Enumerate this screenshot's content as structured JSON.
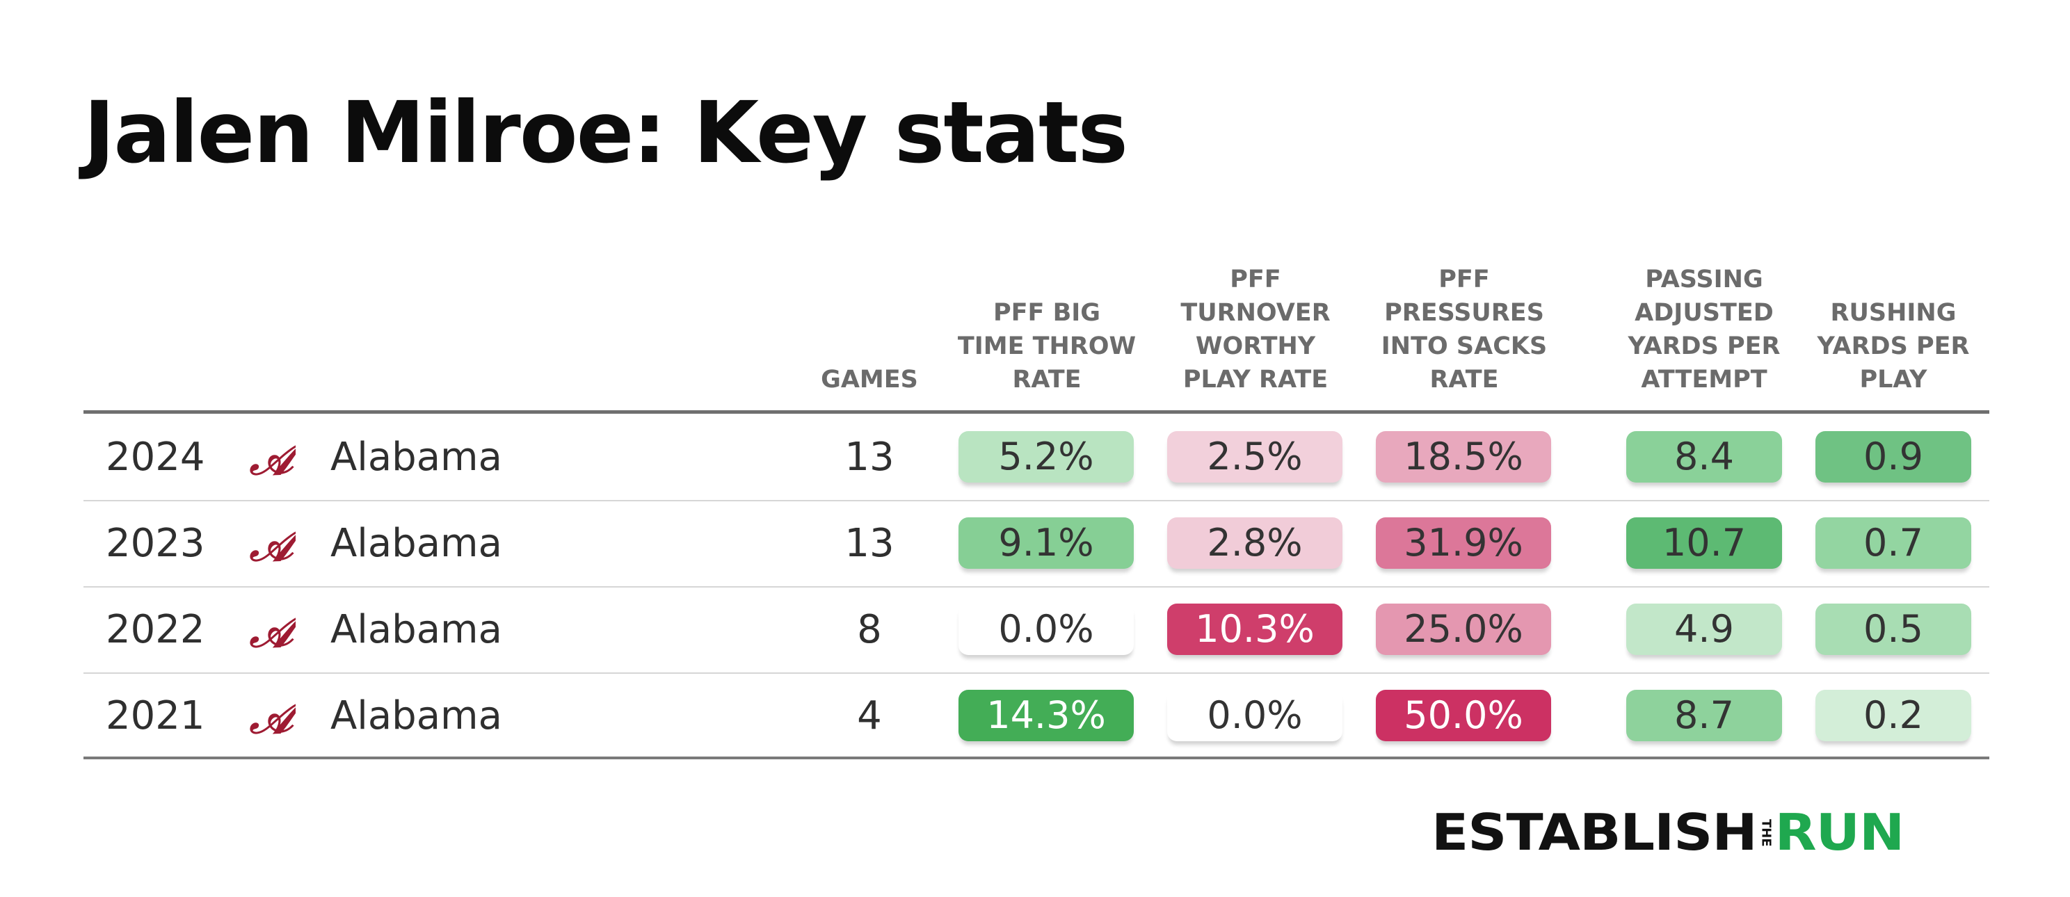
{
  "title": "Jalen Milroe: Key stats",
  "headers": {
    "games": [
      "GAMES"
    ],
    "c1": [
      "PFF BIG",
      "TIME THROW",
      "RATE"
    ],
    "c2": [
      "PFF",
      "TURNOVER",
      "WORTHY",
      "PLAY RATE"
    ],
    "c3": [
      "PFF",
      "PRESSURES",
      "INTO SACKS",
      "RATE"
    ],
    "c4": [
      "PASSING",
      "ADJUSTED",
      "YARDS PER",
      "ATTEMPT"
    ],
    "c5": [
      "RUSHING",
      "YARDS PER",
      "PLAY"
    ]
  },
  "rows": [
    {
      "season": "2024",
      "team": "Alabama",
      "games": "13",
      "cells": [
        {
          "text": "5.2%",
          "bg": "#b9e4c1",
          "fg": "#333333"
        },
        {
          "text": "2.5%",
          "bg": "#f2d0db",
          "fg": "#333333"
        },
        {
          "text": "18.5%",
          "bg": "#e8a8bd",
          "fg": "#333333"
        },
        {
          "text": "8.4",
          "bg": "#8ad199",
          "fg": "#333333"
        },
        {
          "text": "0.9",
          "bg": "#6fc283",
          "fg": "#333333"
        }
      ]
    },
    {
      "season": "2023",
      "team": "Alabama",
      "games": "13",
      "cells": [
        {
          "text": "9.1%",
          "bg": "#86cf95",
          "fg": "#333333"
        },
        {
          "text": "2.8%",
          "bg": "#f1ccd8",
          "fg": "#333333"
        },
        {
          "text": "31.9%",
          "bg": "#dc7799",
          "fg": "#333333"
        },
        {
          "text": "10.7",
          "bg": "#5dba73",
          "fg": "#333333"
        },
        {
          "text": "0.7",
          "bg": "#93d5a1",
          "fg": "#333333"
        }
      ]
    },
    {
      "season": "2022",
      "team": "Alabama",
      "games": "8",
      "cells": [
        {
          "text": "0.0%",
          "bg": "#ffffff",
          "fg": "#333333"
        },
        {
          "text": "10.3%",
          "bg": "#cf3e6b",
          "fg": "#ffffff"
        },
        {
          "text": "25.0%",
          "bg": "#e497b0",
          "fg": "#333333"
        },
        {
          "text": "4.9",
          "bg": "#c2e7c9",
          "fg": "#333333"
        },
        {
          "text": "0.5",
          "bg": "#a8ddb3",
          "fg": "#333333"
        }
      ]
    },
    {
      "season": "2021",
      "team": "Alabama",
      "games": "4",
      "cells": [
        {
          "text": "14.3%",
          "bg": "#43ad56",
          "fg": "#ffffff"
        },
        {
          "text": "0.0%",
          "bg": "#ffffff",
          "fg": "#333333"
        },
        {
          "text": "50.0%",
          "bg": "#cc3163",
          "fg": "#ffffff"
        },
        {
          "text": "8.7",
          "bg": "#8ed29c",
          "fg": "#333333"
        },
        {
          "text": "0.2",
          "bg": "#d3eed8",
          "fg": "#333333"
        }
      ]
    }
  ],
  "brand": {
    "establish": "ESTABLISH",
    "the": "THE",
    "run": "RUN"
  },
  "logo_icon": "alabama-script-a-icon",
  "colors": {
    "logo": "#9e1b32",
    "brand_green": "#1fa84f"
  },
  "chart_data": {
    "type": "table",
    "title": "Jalen Milroe: Key stats",
    "columns": [
      "",
      "",
      "GAMES",
      "PFF BIG TIME THROW RATE",
      "PFF TURNOVER WORTHY PLAY RATE",
      "PFF PRESSURES INTO SACKS RATE",
      "PASSING ADJUSTED YARDS PER ATTEMPT",
      "RUSHING YARDS PER PLAY"
    ],
    "rows": [
      [
        "2024",
        "Alabama",
        13,
        "5.2%",
        "2.5%",
        "18.5%",
        8.4,
        0.9
      ],
      [
        "2023",
        "Alabama",
        13,
        "9.1%",
        "2.8%",
        "31.9%",
        10.7,
        0.7
      ],
      [
        "2022",
        "Alabama",
        8,
        "0.0%",
        "10.3%",
        "25.0%",
        4.9,
        0.5
      ],
      [
        "2021",
        "Alabama",
        4,
        "14.3%",
        "0.0%",
        "50.0%",
        8.7,
        0.2
      ]
    ]
  }
}
